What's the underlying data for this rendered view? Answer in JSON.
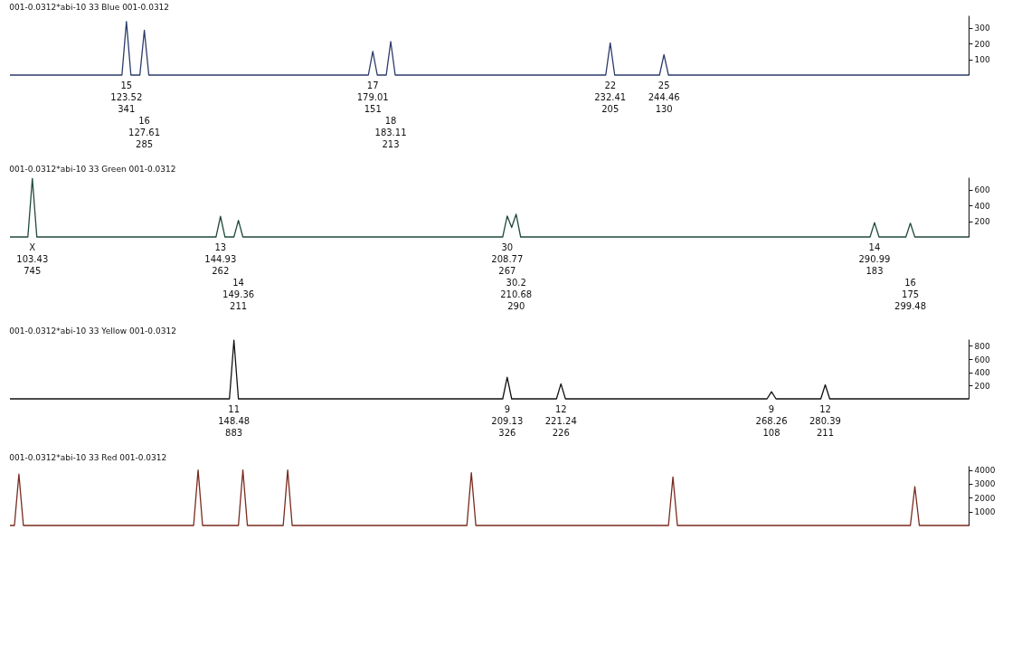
{
  "chart_data": [
    {
      "type": "line",
      "title": "001-0.0312*abi-10 33 Blue 001-0.0312",
      "ylim": [
        0,
        380
      ],
      "yticks": [
        100,
        200,
        300
      ],
      "tick_labels": "y",
      "grid": false,
      "categories": [
        null,
        null,
        null,
        null,
        null,
        null,
        null,
        null,
        null,
        null,
        null,
        null,
        null,
        null,
        null,
        null,
        null,
        null,
        null,
        null,
        null,
        null,
        null,
        null,
        null,
        null,
        null,
        null,
        null,
        null,
        null,
        null,
        null,
        null,
        null,
        null,
        null,
        null,
        null,
        null,
        null,
        null,
        null,
        null,
        null,
        null,
        null,
        null,
        null,
        null,
        null,
        null,
        null,
        null,
        null,
        null,
        null,
        null,
        null,
        null,
        null,
        null,
        null,
        null,
        null,
        null,
        null,
        null,
        null,
        null,
        null,
        null,
        null,
        null,
        null,
        null,
        null,
        null,
        null,
        null,
        null,
        null,
        null,
        null,
        null,
        null,
        null,
        null,
        null,
        null,
        null,
        null,
        null,
        null,
        null,
        null,
        null,
        null,
        null,
        null,
        null,
        null,
        null,
        null,
        null,
        null,
        null,
        null,
        null,
        null,
        null,
        null,
        null,
        null,
        null,
        null,
        null,
        null,
        null,
        null,
        null,
        null,
        null,
        null,
        null,
        null,
        null,
        null,
        null,
        null,
        null,
        null,
        null,
        null,
        null,
        null,
        null,
        null,
        null,
        null,
        null,
        null,
        null,
        null,
        null,
        null,
        null,
        null,
        null,
        null,
        null,
        null,
        null,
        null,
        null,
        null,
        null,
        null,
        null,
        null,
        null,
        null,
        null,
        null,
        null,
        null,
        null,
        null,
        null,
        null,
        null,
        null,
        null,
        null,
        null,
        null,
        null,
        null,
        null,
        null,
        null,
        null,
        null,
        null,
        null,
        null,
        null,
        null,
        null,
        null,
        null,
        null,
        null,
        null,
        null,
        null,
        null,
        null,
        null,
        null,
        null,
        null,
        null,
        null,
        null,
        null,
        null,
        null,
        null,
        null,
        null,
        null,
        null,
        null,
        null
      ],
      "series": [
        {
          "color": "#2b3a6b",
          "values": [
            0,
            0,
            0,
            0,
            0,
            0,
            0,
            0,
            0,
            0,
            0,
            0,
            0,
            0,
            0,
            0,
            0,
            0,
            0,
            0,
            0,
            0,
            0,
            0,
            0,
            0,
            341,
            0,
            0,
            0,
            285,
            0,
            0,
            0,
            0,
            0,
            0,
            0,
            0,
            0,
            0,
            0,
            0,
            0,
            0,
            0,
            0,
            0,
            0,
            0,
            0,
            0,
            0,
            0,
            0,
            0,
            0,
            0,
            0,
            0,
            0,
            0,
            0,
            0,
            0,
            0,
            0,
            0,
            0,
            0,
            0,
            0,
            0,
            0,
            0,
            0,
            0,
            0,
            0,
            0,
            0,
            151,
            0,
            0,
            0,
            213,
            0,
            0,
            0,
            0,
            0,
            0,
            0,
            0,
            0,
            0,
            0,
            0,
            0,
            0,
            0,
            0,
            0,
            0,
            0,
            0,
            0,
            0,
            0,
            0,
            0,
            0,
            0,
            0,
            0,
            0,
            0,
            0,
            0,
            0,
            0,
            0,
            0,
            0,
            0,
            0,
            0,
            0,
            0,
            0,
            0,
            0,
            0,
            0,
            205,
            0,
            0,
            0,
            0,
            0,
            0,
            0,
            0,
            0,
            0,
            0,
            130,
            0,
            0,
            0,
            0,
            0,
            0,
            0,
            0,
            0,
            0,
            0,
            0,
            0,
            0,
            0,
            0,
            0,
            0,
            0,
            0,
            0,
            0,
            0,
            0,
            0,
            0,
            0,
            0,
            0,
            0,
            0,
            0,
            0,
            0,
            0,
            0,
            0,
            0,
            0,
            0,
            0,
            0,
            0,
            0,
            0,
            0,
            0,
            0,
            0,
            0,
            0,
            0,
            0,
            0,
            0,
            0,
            0,
            0,
            0,
            0,
            0,
            0,
            0,
            0,
            0,
            0,
            0,
            0
          ]
        }
      ],
      "annotations": [
        "15",
        "123.52",
        "341",
        "16",
        "127.61",
        "285",
        "17",
        "179.01",
        "151",
        "18",
        "183.11",
        "213",
        "22",
        "232.41",
        "205",
        "25",
        "244.46",
        "130"
      ]
    },
    {
      "type": "line",
      "title": "001-0.0312*abi-10 33 Green 001-0.0312",
      "ylim": [
        0,
        760
      ],
      "yticks": [
        200,
        400,
        600
      ],
      "tick_labels": "y",
      "grid": false,
      "categories": [
        null,
        null,
        null,
        null,
        null,
        null,
        null,
        null,
        null,
        null,
        null,
        null,
        null,
        null,
        null,
        null,
        null,
        null,
        null,
        null,
        null,
        null,
        null,
        null,
        null,
        null,
        null,
        null,
        null,
        null,
        null,
        null,
        null,
        null,
        null,
        null,
        null,
        null,
        null,
        null,
        null,
        null,
        null,
        null,
        null,
        null,
        null,
        null,
        null,
        null,
        null,
        null,
        null,
        null,
        null,
        null,
        null,
        null,
        null,
        null,
        null,
        null,
        null,
        null,
        null,
        null,
        null,
        null,
        null,
        null,
        null,
        null,
        null,
        null,
        null,
        null,
        null,
        null,
        null,
        null,
        null,
        null,
        null,
        null,
        null,
        null,
        null,
        null,
        null,
        null,
        null,
        null,
        null,
        null,
        null,
        null,
        null,
        null,
        null,
        null,
        null,
        null,
        null,
        null,
        null,
        null,
        null,
        null,
        null,
        null,
        null,
        null,
        null,
        null,
        null,
        null,
        null,
        null,
        null,
        null,
        null,
        null,
        null,
        null,
        null,
        null,
        null,
        null,
        null,
        null,
        null,
        null,
        null,
        null,
        null,
        null,
        null,
        null,
        null,
        null,
        null,
        null,
        null,
        null,
        null,
        null,
        null,
        null,
        null,
        null,
        null,
        null,
        null,
        null,
        null,
        null,
        null,
        null,
        null,
        null,
        null,
        null,
        null,
        null,
        null,
        null,
        null,
        null,
        null,
        null,
        null,
        null,
        null,
        null,
        null,
        null,
        null,
        null,
        null,
        null,
        null,
        null,
        null,
        null,
        null,
        null,
        null,
        null,
        null,
        null,
        null,
        null,
        null,
        null,
        null,
        null,
        null,
        null,
        null,
        null,
        null,
        null,
        null,
        null,
        null,
        null,
        null,
        null,
        null,
        null,
        null,
        null,
        null,
        null,
        null
      ],
      "series": [
        {
          "color": "#1f4a3a",
          "values": [
            0,
            0,
            0,
            0,
            0,
            745,
            0,
            0,
            0,
            0,
            0,
            0,
            0,
            0,
            0,
            0,
            0,
            0,
            0,
            0,
            0,
            0,
            0,
            0,
            0,
            0,
            0,
            0,
            0,
            0,
            0,
            0,
            0,
            0,
            0,
            0,
            0,
            0,
            0,
            0,
            0,
            0,
            0,
            0,
            0,
            0,
            0,
            262,
            0,
            0,
            0,
            211,
            0,
            0,
            0,
            0,
            0,
            0,
            0,
            0,
            0,
            0,
            0,
            0,
            0,
            0,
            0,
            0,
            0,
            0,
            0,
            0,
            0,
            0,
            0,
            0,
            0,
            0,
            0,
            0,
            0,
            0,
            0,
            0,
            0,
            0,
            0,
            0,
            0,
            0,
            0,
            0,
            0,
            0,
            0,
            0,
            0,
            0,
            0,
            0,
            0,
            0,
            0,
            0,
            0,
            0,
            0,
            0,
            0,
            0,
            0,
            267,
            120,
            290,
            0,
            0,
            0,
            0,
            0,
            0,
            0,
            0,
            0,
            0,
            0,
            0,
            0,
            0,
            0,
            0,
            0,
            0,
            0,
            0,
            0,
            0,
            0,
            0,
            0,
            0,
            0,
            0,
            0,
            0,
            0,
            0,
            0,
            0,
            0,
            0,
            0,
            0,
            0,
            0,
            0,
            0,
            0,
            0,
            0,
            0,
            0,
            0,
            0,
            0,
            0,
            0,
            0,
            0,
            0,
            0,
            0,
            0,
            0,
            0,
            0,
            0,
            0,
            0,
            0,
            0,
            0,
            0,
            0,
            0,
            0,
            0,
            0,
            0,
            0,
            0,
            0,
            0,
            0,
            183,
            0,
            0,
            0,
            0,
            0,
            0,
            0,
            175,
            0,
            0,
            0,
            0,
            0,
            0,
            0,
            0,
            0,
            0,
            0,
            0,
            0
          ]
        }
      ],
      "annotations": [
        "X",
        "103.43",
        "745",
        "13",
        "144.93",
        "262",
        "14",
        "149.36",
        "211",
        "30",
        "208.77",
        "267",
        "30.2",
        "210.68",
        "290",
        "14",
        "290.99",
        "183",
        "16",
        "175",
        "299.48"
      ]
    },
    {
      "type": "line",
      "title": "001-0.0312*abi-10 33 Yellow 001-0.0312",
      "ylim": [
        0,
        900
      ],
      "yticks": [
        200,
        400,
        600,
        800
      ],
      "tick_labels": "y",
      "grid": false,
      "categories": [
        null,
        null,
        null,
        null,
        null,
        null,
        null,
        null,
        null,
        null,
        null,
        null,
        null,
        null,
        null,
        null,
        null,
        null,
        null,
        null,
        null,
        null,
        null,
        null,
        null,
        null,
        null,
        null,
        null,
        null,
        null,
        null,
        null,
        null,
        null,
        null,
        null,
        null,
        null,
        null,
        null,
        null,
        null,
        null,
        null,
        null,
        null,
        null,
        null,
        null,
        null,
        null,
        null,
        null,
        null,
        null,
        null,
        null,
        null,
        null,
        null,
        null,
        null,
        null,
        null,
        null,
        null,
        null,
        null,
        null,
        null,
        null,
        null,
        null,
        null,
        null,
        null,
        null,
        null,
        null,
        null,
        null,
        null,
        null,
        null,
        null,
        null,
        null,
        null,
        null,
        null,
        null,
        null,
        null,
        null,
        null,
        null,
        null,
        null,
        null,
        null,
        null,
        null,
        null,
        null,
        null,
        null,
        null,
        null,
        null,
        null,
        null,
        null,
        null,
        null,
        null,
        null,
        null,
        null,
        null,
        null,
        null,
        null,
        null,
        null,
        null,
        null,
        null,
        null,
        null,
        null,
        null,
        null,
        null,
        null,
        null,
        null,
        null,
        null,
        null,
        null,
        null,
        null,
        null,
        null,
        null,
        null,
        null,
        null,
        null,
        null,
        null,
        null,
        null,
        null,
        null,
        null,
        null,
        null,
        null,
        null,
        null,
        null,
        null,
        null,
        null,
        null,
        null,
        null,
        null,
        null,
        null,
        null,
        null,
        null,
        null,
        null,
        null,
        null,
        null,
        null,
        null,
        null,
        null,
        null,
        null,
        null,
        null,
        null,
        null,
        null,
        null,
        null,
        null,
        null,
        null,
        null,
        null,
        null,
        null,
        null,
        null,
        null,
        null,
        null,
        null,
        null,
        null,
        null,
        null,
        null,
        null,
        null,
        null,
        null
      ],
      "series": [
        {
          "color": "#111111",
          "values": [
            0,
            0,
            0,
            0,
            0,
            0,
            0,
            0,
            0,
            0,
            0,
            0,
            0,
            0,
            0,
            0,
            0,
            0,
            0,
            0,
            0,
            0,
            0,
            0,
            0,
            0,
            0,
            0,
            0,
            0,
            0,
            0,
            0,
            0,
            0,
            0,
            0,
            0,
            0,
            0,
            0,
            0,
            0,
            0,
            0,
            0,
            0,
            0,
            0,
            0,
            883,
            0,
            0,
            0,
            0,
            0,
            0,
            0,
            0,
            0,
            0,
            0,
            0,
            0,
            0,
            0,
            0,
            0,
            0,
            0,
            0,
            0,
            0,
            0,
            0,
            0,
            0,
            0,
            0,
            0,
            0,
            0,
            0,
            0,
            0,
            0,
            0,
            0,
            0,
            0,
            0,
            0,
            0,
            0,
            0,
            0,
            0,
            0,
            0,
            0,
            0,
            0,
            0,
            0,
            0,
            0,
            0,
            0,
            0,
            0,
            0,
            326,
            0,
            0,
            0,
            0,
            0,
            0,
            0,
            0,
            0,
            0,
            0,
            226,
            0,
            0,
            0,
            0,
            0,
            0,
            0,
            0,
            0,
            0,
            0,
            0,
            0,
            0,
            0,
            0,
            0,
            0,
            0,
            0,
            0,
            0,
            0,
            0,
            0,
            0,
            0,
            0,
            0,
            0,
            0,
            0,
            0,
            0,
            0,
            0,
            0,
            0,
            0,
            0,
            0,
            0,
            0,
            0,
            0,
            0,
            108,
            0,
            0,
            0,
            0,
            0,
            0,
            0,
            0,
            0,
            0,
            0,
            211,
            0,
            0,
            0,
            0,
            0,
            0,
            0,
            0,
            0,
            0,
            0,
            0,
            0,
            0,
            0,
            0,
            0,
            0,
            0,
            0,
            0,
            0,
            0,
            0,
            0,
            0,
            0,
            0,
            0,
            0,
            0,
            0
          ]
        }
      ],
      "annotations": [
        "11",
        "148.48",
        "883",
        "9",
        "209.13",
        "326",
        "12",
        "221.24",
        "226",
        "9",
        "268.26",
        "108",
        "12",
        "280.39",
        "211"
      ]
    },
    {
      "type": "line",
      "title": "001-0.0312*abi-10 33 Red 001-0.0312",
      "ylim": [
        0,
        4300
      ],
      "yticks": [
        1000,
        2000,
        3000,
        4000
      ],
      "tick_labels": "y",
      "grid": false,
      "categories": [
        null,
        null,
        null,
        null,
        null,
        null,
        null,
        null,
        null,
        null,
        null,
        null,
        null,
        null,
        null,
        null,
        null,
        null,
        null,
        null,
        null,
        null,
        null,
        null,
        null,
        null,
        null,
        null,
        null,
        null,
        null,
        null,
        null,
        null,
        null,
        null,
        null,
        null,
        null,
        null,
        null,
        null,
        null,
        null,
        null,
        null,
        null,
        null,
        null,
        null,
        null,
        null,
        null,
        null,
        null,
        null,
        null,
        null,
        null,
        null,
        null,
        null,
        null,
        null,
        null,
        null,
        null,
        null,
        null,
        null,
        null,
        null,
        null,
        null,
        null,
        null,
        null,
        null,
        null,
        null,
        null,
        null,
        null,
        null,
        null,
        null,
        null,
        null,
        null,
        null,
        null,
        null,
        null,
        null,
        null,
        null,
        null,
        null,
        null,
        null,
        null,
        null,
        null,
        null,
        null,
        null,
        null,
        null,
        null,
        null,
        null,
        null,
        null,
        null,
        null,
        null,
        null,
        null,
        null,
        null,
        null,
        null,
        null,
        null,
        null,
        null,
        null,
        null,
        null,
        null,
        null,
        null,
        null,
        null,
        null,
        null,
        null,
        null,
        null,
        null,
        null,
        null,
        null,
        null,
        null,
        null,
        null,
        null,
        null,
        null,
        null,
        null,
        null,
        null,
        null,
        null,
        null,
        null,
        null,
        null,
        null,
        null,
        null,
        null,
        null,
        null,
        null,
        null,
        null,
        null,
        null,
        null,
        null,
        null,
        null,
        null,
        null,
        null,
        null,
        null,
        null,
        null,
        null,
        null,
        null,
        null,
        null,
        null,
        null,
        null,
        null,
        null,
        null,
        null,
        null,
        null,
        null,
        null,
        null,
        null,
        null,
        null,
        null,
        null,
        null,
        null,
        null,
        null,
        null,
        null,
        null,
        null,
        null,
        null,
        null
      ],
      "series": [
        {
          "color": "#7a2a1e",
          "values": [
            0,
            0,
            3700,
            0,
            0,
            0,
            0,
            0,
            0,
            0,
            0,
            0,
            0,
            0,
            0,
            0,
            0,
            0,
            0,
            0,
            0,
            0,
            0,
            0,
            0,
            0,
            0,
            0,
            0,
            0,
            0,
            0,
            0,
            0,
            0,
            0,
            0,
            0,
            0,
            0,
            0,
            0,
            4000,
            0,
            0,
            0,
            0,
            0,
            0,
            0,
            0,
            0,
            4000,
            0,
            0,
            0,
            0,
            0,
            0,
            0,
            0,
            0,
            4000,
            0,
            0,
            0,
            0,
            0,
            0,
            0,
            0,
            0,
            0,
            0,
            0,
            0,
            0,
            0,
            0,
            0,
            0,
            0,
            0,
            0,
            0,
            0,
            0,
            0,
            0,
            0,
            0,
            0,
            0,
            0,
            0,
            0,
            0,
            0,
            0,
            0,
            0,
            0,
            0,
            3800,
            0,
            0,
            0,
            0,
            0,
            0,
            0,
            0,
            0,
            0,
            0,
            0,
            0,
            0,
            0,
            0,
            0,
            0,
            0,
            0,
            0,
            0,
            0,
            0,
            0,
            0,
            0,
            0,
            0,
            0,
            0,
            0,
            0,
            0,
            0,
            0,
            0,
            0,
            0,
            0,
            0,
            0,
            0,
            0,
            3500,
            0,
            0,
            0,
            0,
            0,
            0,
            0,
            0,
            0,
            0,
            0,
            0,
            0,
            0,
            0,
            0,
            0,
            0,
            0,
            0,
            0,
            0,
            0,
            0,
            0,
            0,
            0,
            0,
            0,
            0,
            0,
            0,
            0,
            0,
            0,
            0,
            0,
            0,
            0,
            0,
            0,
            0,
            0,
            0,
            0,
            0,
            0,
            0,
            0,
            0,
            0,
            0,
            0,
            2800,
            0,
            0,
            0,
            0,
            0,
            0,
            0,
            0,
            0,
            0,
            0,
            0
          ]
        }
      ]
    }
  ]
}
